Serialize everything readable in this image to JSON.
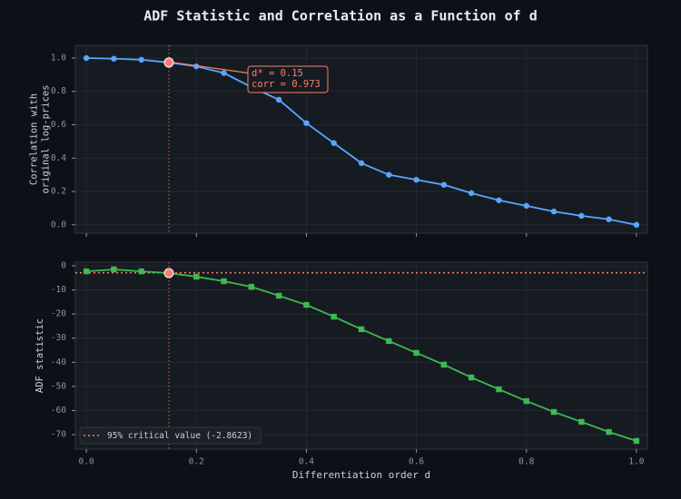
{
  "title": "ADF Statistic and Correlation as a Function of d",
  "chart_data": [
    {
      "type": "line",
      "ylabel": [
        "Correlation with",
        "original log-prices"
      ],
      "x": [
        0.0,
        0.05,
        0.1,
        0.15,
        0.2,
        0.25,
        0.3,
        0.35,
        0.4,
        0.45,
        0.5,
        0.55,
        0.6,
        0.65,
        0.7,
        0.75,
        0.8,
        0.85,
        0.9,
        0.95,
        1.0
      ],
      "series": [
        {
          "color": "#58a6ff",
          "marker": "circle",
          "values": [
            1.0,
            0.996,
            0.99,
            0.973,
            0.95,
            0.91,
            0.826,
            0.75,
            0.61,
            0.49,
            0.37,
            0.3,
            0.27,
            0.24,
            0.19,
            0.147,
            0.114,
            0.08,
            0.054,
            0.033,
            0.0
          ]
        }
      ],
      "xlim": [
        -0.02,
        1.02
      ],
      "ylim": [
        -0.05,
        1.076
      ],
      "yticks": [
        {
          "value": 0,
          "label": "0.0"
        },
        0.2,
        0.4,
        0.6,
        0.8,
        {
          "value": 1,
          "label": "1.0"
        }
      ],
      "grid": true,
      "highlight_index": 3,
      "annotation": [
        "d* = 0.15",
        "corr = 0.973"
      ]
    },
    {
      "type": "line",
      "ylabel": [
        "ADF statistic"
      ],
      "xlabel": "Differentiation order d",
      "x": [
        0.0,
        0.05,
        0.1,
        0.15,
        0.2,
        0.25,
        0.3,
        0.35,
        0.4,
        0.45,
        0.5,
        0.55,
        0.6,
        0.65,
        0.7,
        0.75,
        0.8,
        0.85,
        0.9,
        0.95,
        1.0
      ],
      "series": [
        {
          "color": "#3fb950",
          "marker": "square",
          "values": [
            -2.3,
            -1.5,
            -2.3,
            -3.0,
            -4.5,
            -6.4,
            -8.7,
            -12.4,
            -16.2,
            -21.1,
            -26.3,
            -31.2,
            -36.1,
            -41.0,
            -46.3,
            -51.2,
            -56.1,
            -60.6,
            -64.7,
            -68.9,
            -72.6
          ]
        }
      ],
      "xlim": [
        -0.02,
        1.02
      ],
      "ylim": [
        -76,
        1.5
      ],
      "xticks": [
        {
          "value": 0,
          "label": "0.0"
        },
        0.2,
        0.4,
        0.6,
        0.8,
        {
          "value": 1,
          "label": "1.0"
        }
      ],
      "yticks": [
        0,
        -10,
        -20,
        -30,
        -40,
        -50,
        -60,
        -70
      ],
      "grid": true,
      "highlight_index": 3,
      "hline": {
        "value": -2.8623,
        "label": "95% critical value (-2.8623)",
        "color": "#f78166"
      },
      "legend": "lower left"
    }
  ]
}
